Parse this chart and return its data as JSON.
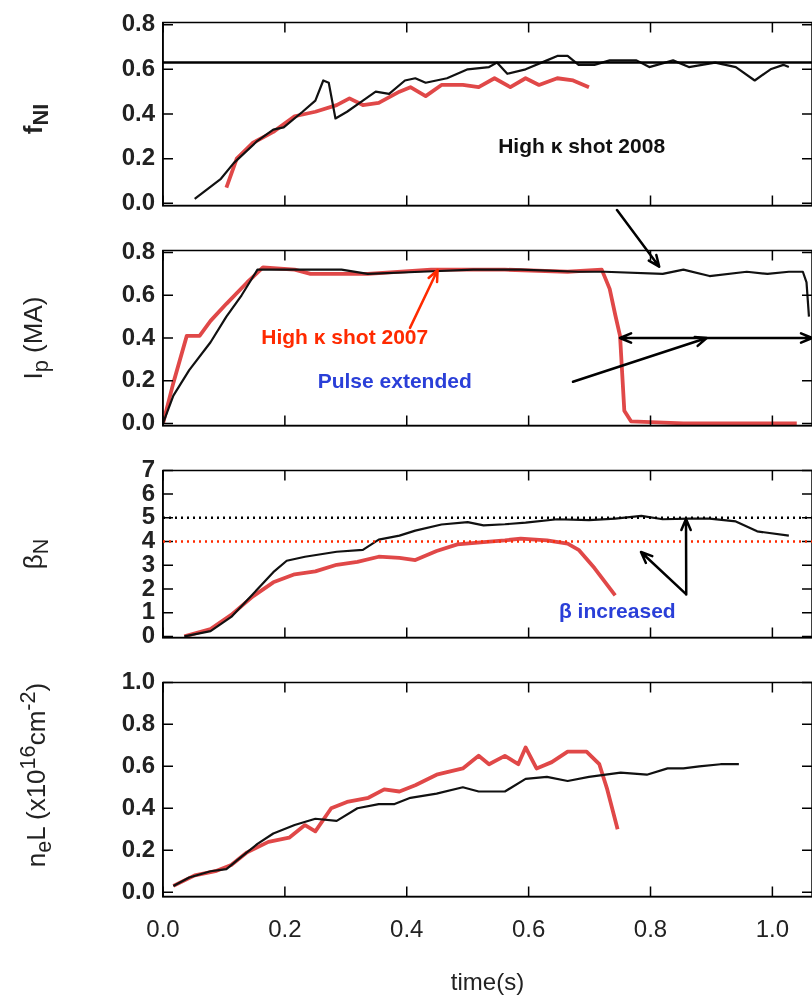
{
  "chart_data": [
    {
      "type": "line",
      "ylabel": "f$_{NI}$",
      "xlim": [
        0,
        1.065
      ],
      "xticks": [
        0,
        0.2,
        0.4,
        0.6,
        0.8,
        1.0
      ],
      "ylim": [
        -0.01,
        0.81
      ],
      "yticks": [
        {
          "value": 0,
          "label": "0.0"
        },
        {
          "value": 0.2,
          "label": "0.2"
        },
        {
          "value": 0.4,
          "label": "0.4"
        },
        {
          "value": 0.6,
          "label": "0.6"
        },
        {
          "value": 0.8,
          "label": "0.8"
        }
      ],
      "tick_labels": "y",
      "grid": false,
      "legend": false,
      "marker": "none",
      "line_style": "solid",
      "ref_lines": [
        {
          "axis": "y",
          "value": 0.63,
          "color": "#000000",
          "line_style": "solid"
        }
      ],
      "annotations": [
        "High κ shot 2008"
      ],
      "series": [
        {
          "color": "#111111",
          "x": [
            0.052,
            0.095,
            0.116,
            0.155,
            0.181,
            0.198,
            0.229,
            0.25,
            0.263,
            0.272,
            0.283,
            0.302,
            0.328,
            0.349,
            0.371,
            0.397,
            0.414,
            0.431,
            0.466,
            0.5,
            0.535,
            0.548,
            0.565,
            0.595,
            0.63,
            0.647,
            0.664,
            0.682,
            0.708,
            0.733,
            0.777,
            0.798,
            0.837,
            0.863,
            0.906,
            0.94,
            0.971,
            0.997,
            1.018,
            1.027
          ],
          "values": [
            0.02,
            0.11,
            0.18,
            0.28,
            0.33,
            0.34,
            0.41,
            0.46,
            0.55,
            0.54,
            0.38,
            0.41,
            0.46,
            0.5,
            0.49,
            0.55,
            0.56,
            0.54,
            0.56,
            0.6,
            0.61,
            0.63,
            0.58,
            0.6,
            0.64,
            0.66,
            0.66,
            0.62,
            0.62,
            0.64,
            0.64,
            0.61,
            0.64,
            0.61,
            0.63,
            0.61,
            0.55,
            0.6,
            0.62,
            0.61
          ]
        },
        {
          "color": "#e04848",
          "x": [
            0.104,
            0.121,
            0.147,
            0.181,
            0.216,
            0.25,
            0.285,
            0.306,
            0.328,
            0.354,
            0.388,
            0.406,
            0.431,
            0.457,
            0.492,
            0.518,
            0.544,
            0.57,
            0.595,
            0.617,
            0.647,
            0.673,
            0.699
          ],
          "values": [
            0.07,
            0.2,
            0.27,
            0.32,
            0.39,
            0.41,
            0.44,
            0.47,
            0.44,
            0.45,
            0.5,
            0.52,
            0.48,
            0.53,
            0.53,
            0.52,
            0.56,
            0.52,
            0.56,
            0.53,
            0.56,
            0.55,
            0.52
          ]
        }
      ]
    },
    {
      "type": "line",
      "ylabel": "I$_{p}$ (MA)",
      "xlim": [
        0,
        1.065
      ],
      "xticks": [
        0,
        0.2,
        0.4,
        0.6,
        0.8,
        1.0
      ],
      "ylim": [
        -0.01,
        0.81
      ],
      "yticks": [
        {
          "value": 0,
          "label": "0.0"
        },
        {
          "value": 0.2,
          "label": "0.2"
        },
        {
          "value": 0.4,
          "label": "0.4"
        },
        {
          "value": 0.6,
          "label": "0.6"
        },
        {
          "value": 0.8,
          "label": "0.8"
        }
      ],
      "tick_labels": "y",
      "grid": false,
      "legend": false,
      "marker": "none",
      "line_style": "solid",
      "annotations": [
        {
          "text": "High κ shot 2007",
          "x": 0.45,
          "y": 0.72
        },
        "Pulse extended"
      ],
      "series": [
        {
          "color": "#111111",
          "x": [
            0,
            0.017,
            0.043,
            0.078,
            0.104,
            0.129,
            0.155,
            0.216,
            0.293,
            0.336,
            0.423,
            0.509,
            0.587,
            0.682,
            0.725,
            0.82,
            0.854,
            0.897,
            0.958,
            0.992,
            1.027,
            1.05,
            1.056,
            1.06
          ],
          "values": [
            0,
            0.13,
            0.25,
            0.38,
            0.5,
            0.6,
            0.72,
            0.72,
            0.72,
            0.7,
            0.71,
            0.72,
            0.72,
            0.71,
            0.71,
            0.7,
            0.72,
            0.69,
            0.71,
            0.7,
            0.71,
            0.71,
            0.66,
            0.5
          ]
        },
        {
          "color": "#e04848",
          "x": [
            0,
            0.017,
            0.039,
            0.06,
            0.078,
            0.104,
            0.138,
            0.164,
            0.216,
            0.242,
            0.336,
            0.44,
            0.561,
            0.664,
            0.72,
            0.733,
            0.742,
            0.75,
            0.757,
            0.768,
            0.854,
            1.04
          ],
          "values": [
            0,
            0.19,
            0.41,
            0.41,
            0.48,
            0.56,
            0.66,
            0.73,
            0.72,
            0.7,
            0.7,
            0.72,
            0.72,
            0.71,
            0.72,
            0.63,
            0.51,
            0.41,
            0.06,
            0.01,
            0,
            0
          ]
        }
      ]
    },
    {
      "type": "line",
      "ylabel": "β$_{N}$",
      "xlim": [
        0,
        1.065
      ],
      "xticks": [
        0,
        0.2,
        0.4,
        0.6,
        0.8,
        1.0
      ],
      "ylim": [
        -0.05,
        7
      ],
      "yticks": [
        0,
        1,
        2,
        3,
        4,
        5,
        6,
        7
      ],
      "tick_labels": "y",
      "grid": false,
      "legend": false,
      "marker": "none",
      "line_style": "solid",
      "ref_lines": [
        {
          "axis": "y",
          "value": 5,
          "color": "#000000",
          "line_style": "dotted"
        },
        {
          "axis": "y",
          "value": 4,
          "color": "#ff2a00",
          "line_style": "dotted"
        }
      ],
      "annotations": [
        {
          "text": "β increased",
          "x": 0.858,
          "y": 4.97
        }
      ],
      "series": [
        {
          "color": "#111111",
          "x": [
            0.035,
            0.078,
            0.112,
            0.147,
            0.181,
            0.203,
            0.233,
            0.285,
            0.328,
            0.354,
            0.388,
            0.414,
            0.457,
            0.5,
            0.526,
            0.561,
            0.595,
            0.647,
            0.699,
            0.742,
            0.785,
            0.82,
            0.863,
            0.897,
            0.94,
            0.975,
            1.027
          ],
          "values": [
            0,
            0.22,
            0.82,
            1.77,
            2.71,
            3.19,
            3.36,
            3.57,
            3.65,
            4.08,
            4.25,
            4.46,
            4.72,
            4.82,
            4.68,
            4.73,
            4.8,
            4.94,
            4.9,
            4.97,
            5.08,
            4.94,
            4.97,
            4.97,
            4.85,
            4.43,
            4.25
          ]
        },
        {
          "color": "#e04848",
          "x": [
            0.035,
            0.078,
            0.112,
            0.147,
            0.181,
            0.216,
            0.25,
            0.285,
            0.319,
            0.354,
            0.388,
            0.414,
            0.449,
            0.483,
            0.526,
            0.561,
            0.587,
            0.63,
            0.664,
            0.682,
            0.708,
            0.742
          ],
          "values": [
            0,
            0.31,
            0.91,
            1.68,
            2.28,
            2.62,
            2.74,
            3.02,
            3.14,
            3.36,
            3.31,
            3.22,
            3.6,
            3.88,
            3.98,
            4.05,
            4.12,
            4.05,
            3.91,
            3.65,
            2.88,
            1.73
          ]
        }
      ]
    },
    {
      "type": "line",
      "xlabel": "time(s)",
      "ylabel": "n$_{e}$L (x10$^{16}$cm$^{-2}$)",
      "xlim": [
        0,
        1.065
      ],
      "xticks": [
        {
          "value": 0,
          "label": "0.0"
        },
        {
          "value": 0.2,
          "label": "0.2"
        },
        {
          "value": 0.4,
          "label": "0.4"
        },
        {
          "value": 0.6,
          "label": "0.6"
        },
        {
          "value": 0.8,
          "label": "0.8"
        },
        {
          "value": 1,
          "label": "1.0"
        }
      ],
      "ylim": [
        -0.02,
        1.0
      ],
      "yticks": [
        {
          "value": 0,
          "label": "0.0"
        },
        {
          "value": 0.2,
          "label": "0.2"
        },
        {
          "value": 0.4,
          "label": "0.4"
        },
        {
          "value": 0.6,
          "label": "0.6"
        },
        {
          "value": 0.8,
          "label": "0.8"
        },
        {
          "value": 1,
          "label": "1.0"
        }
      ],
      "grid": false,
      "legend": false,
      "marker": "none",
      "line_style": "solid",
      "series": [
        {
          "color": "#111111",
          "x": [
            0.017,
            0.043,
            0.078,
            0.104,
            0.129,
            0.155,
            0.181,
            0.216,
            0.25,
            0.285,
            0.319,
            0.354,
            0.38,
            0.406,
            0.449,
            0.492,
            0.518,
            0.561,
            0.595,
            0.63,
            0.664,
            0.699,
            0.751,
            0.794,
            0.828,
            0.854,
            0.88,
            0.915,
            0.945
          ],
          "values": [
            0.03,
            0.07,
            0.1,
            0.11,
            0.17,
            0.23,
            0.28,
            0.32,
            0.35,
            0.34,
            0.4,
            0.42,
            0.42,
            0.45,
            0.47,
            0.5,
            0.48,
            0.48,
            0.54,
            0.55,
            0.53,
            0.55,
            0.57,
            0.56,
            0.59,
            0.59,
            0.6,
            0.61,
            0.61
          ]
        },
        {
          "color": "#e04848",
          "x": [
            0.017,
            0.052,
            0.086,
            0.112,
            0.138,
            0.173,
            0.207,
            0.233,
            0.25,
            0.276,
            0.302,
            0.337,
            0.363,
            0.388,
            0.414,
            0.449,
            0.492,
            0.518,
            0.535,
            0.561,
            0.583,
            0.595,
            0.613,
            0.638,
            0.664,
            0.695,
            0.716,
            0.729,
            0.746
          ],
          "values": [
            0.03,
            0.08,
            0.1,
            0.13,
            0.19,
            0.24,
            0.26,
            0.32,
            0.29,
            0.4,
            0.43,
            0.45,
            0.49,
            0.48,
            0.51,
            0.56,
            0.59,
            0.65,
            0.61,
            0.65,
            0.61,
            0.69,
            0.59,
            0.62,
            0.67,
            0.67,
            0.61,
            0.49,
            0.3
          ]
        }
      ]
    }
  ]
}
